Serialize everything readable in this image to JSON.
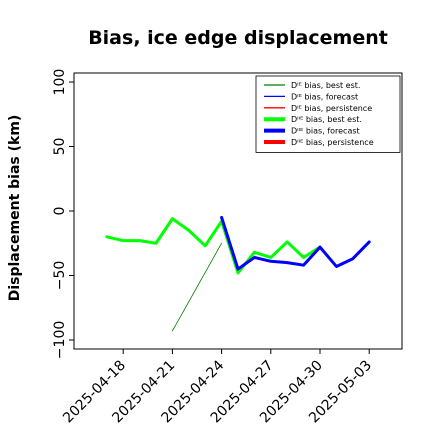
{
  "chart_data": {
    "type": "line",
    "title": "Bias, ice edge displacement",
    "xlabel": "",
    "ylabel": "Displacement bias (km)",
    "ylim": [
      -107,
      107
    ],
    "xlim": [
      "2025-04-15",
      "2025-05-05"
    ],
    "grid": false,
    "legend_position": "top-right",
    "y_ticks": [
      -100,
      -50,
      0,
      50,
      100
    ],
    "y_tick_labels": [
      "−100",
      "−50",
      "0",
      "50",
      "100"
    ],
    "x_ticks": [
      "2025-04-18",
      "2025-04-21",
      "2025-04-24",
      "2025-04-27",
      "2025-04-30",
      "2025-05-03"
    ],
    "x_tick_labels": [
      "2025-04-18",
      "2025-04-21",
      "2025-04-24",
      "2025-04-27",
      "2025-04-30",
      "2025-05-03"
    ],
    "highlighted_tick": "2025-04-24",
    "highlight_color": "#228b22",
    "series": [
      {
        "name": "Dᴵᴱ bias, best est.",
        "color": "#008000",
        "width": 0.8,
        "x": [
          "2025-04-21",
          "2025-04-24"
        ],
        "y": [
          -93,
          -25
        ]
      },
      {
        "name": "Dᴵᴱ bias, forecast",
        "color": "#0000ff",
        "width": 0.8,
        "x": [],
        "y": []
      },
      {
        "name": "Dᴵᴱ bias, persistence",
        "color": "#ff0000",
        "width": 0.8,
        "x": [],
        "y": []
      },
      {
        "name": "Dᴵᴵᴱ bias, best est.",
        "color": "#00ff00",
        "width": 3,
        "x": [
          "2025-04-17",
          "2025-04-18",
          "2025-04-19",
          "2025-04-20",
          "2025-04-21",
          "2025-04-22",
          "2025-04-23",
          "2025-04-24",
          "2025-04-25",
          "2025-04-26",
          "2025-04-27",
          "2025-04-28",
          "2025-04-29",
          "2025-04-30"
        ],
        "y": [
          -20,
          -23,
          -23,
          -25,
          -6,
          -15,
          -27,
          -8,
          -48,
          -32,
          -36,
          -24,
          -36,
          -28
        ]
      },
      {
        "name": "Dᴵᴵᴱ bias, forecast",
        "color": "#0000ff",
        "width": 3,
        "x": [
          "2025-04-24",
          "2025-04-25",
          "2025-04-26",
          "2025-04-27",
          "2025-04-28",
          "2025-04-29",
          "2025-04-30",
          "2025-05-01",
          "2025-05-02",
          "2025-05-03"
        ],
        "y": [
          -5,
          -45,
          -36,
          -39,
          -40,
          -42,
          -28,
          -43,
          -37,
          -24
        ]
      },
      {
        "name": "Dᴵᴵᴱ bias, persistence",
        "color": "#ff0000",
        "width": 3,
        "x": [],
        "y": []
      }
    ]
  }
}
